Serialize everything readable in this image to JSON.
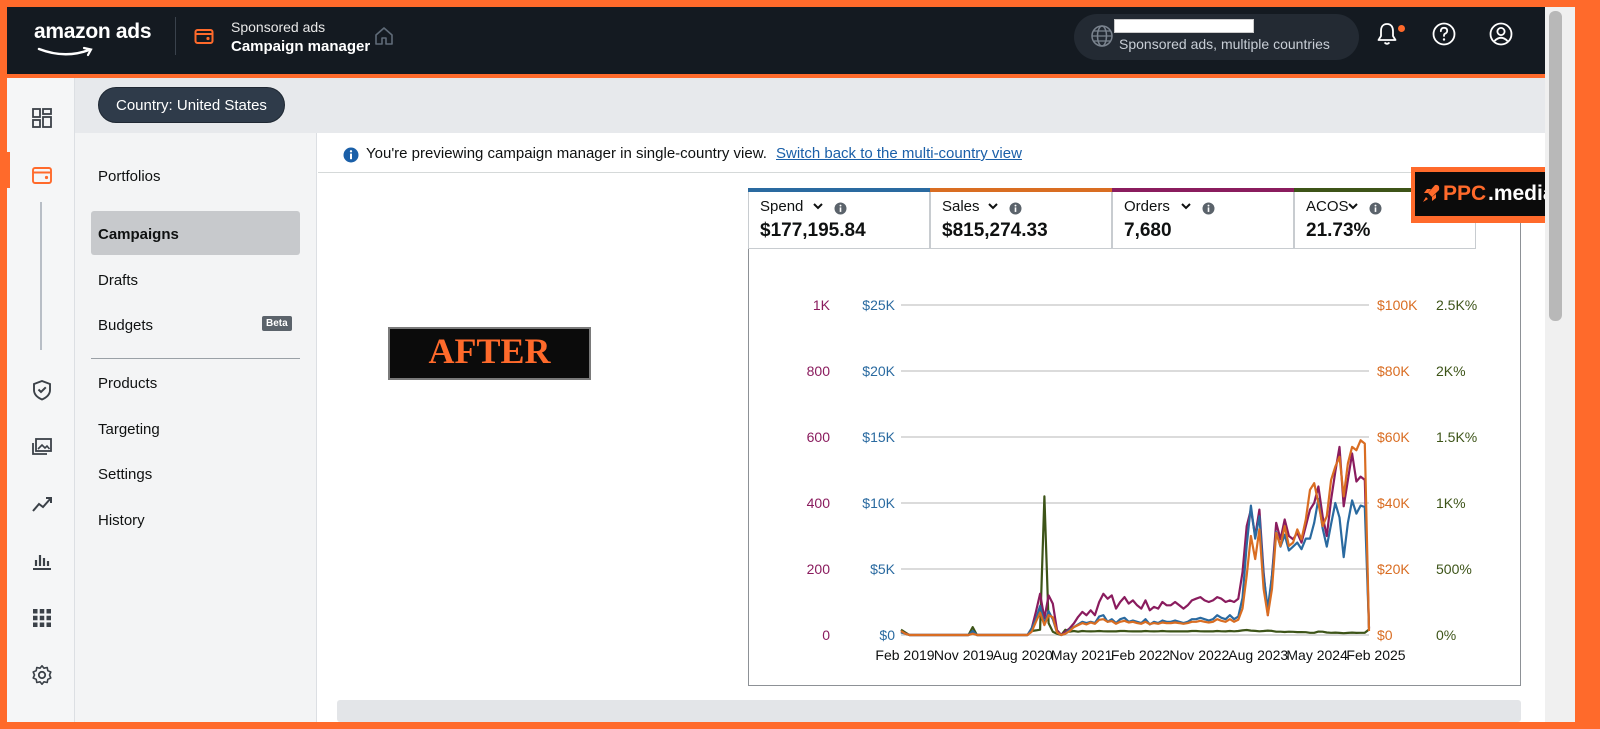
{
  "header": {
    "logo": "amazon ads",
    "product_line": "Sponsored ads",
    "app_title": "Campaign manager",
    "account_subtitle": "Sponsored ads, multiple countries"
  },
  "country_filter": {
    "label": "Country: United States"
  },
  "subnav": {
    "items": [
      "Portfolios",
      "Campaigns",
      "Drafts",
      "Budgets",
      "Products",
      "Targeting",
      "Settings",
      "History"
    ],
    "active": "Campaigns",
    "beta_badge": "Beta"
  },
  "info_bar": {
    "message": "You're previewing campaign manager in single-country view.",
    "link": "Switch back to the multi-country view"
  },
  "overlay": {
    "after_label": "AFTER",
    "brand_left": "PPC",
    "brand_right": ".media"
  },
  "metrics": [
    {
      "label": "Spend",
      "value": "$177,195.84",
      "color": "#2a6aa0"
    },
    {
      "label": "Sales",
      "value": "$815,274.33",
      "color": "#d96d22"
    },
    {
      "label": "Orders",
      "value": "7,680",
      "color": "#8a1c5e"
    },
    {
      "label": "ACOS",
      "value": "21.73%",
      "color": "#3d5418"
    }
  ],
  "colors": {
    "accent": "#ff6a2b",
    "topbar": "#141a21"
  },
  "chart_data": {
    "type": "line",
    "x_labels": [
      "Feb 2019",
      "Nov 2019",
      "Aug 2020",
      "May 2021",
      "Feb 2022",
      "Nov 2022",
      "Aug 2023",
      "May 2024",
      "Feb 2025"
    ],
    "axes": {
      "orders": {
        "ticks": [
          "1K",
          "800",
          "600",
          "400",
          "200",
          "0"
        ],
        "ylim": [
          0,
          1000
        ],
        "color": "#8a1c5e"
      },
      "spend": {
        "ticks": [
          "$25K",
          "$20K",
          "$15K",
          "$10K",
          "$5K",
          "$0"
        ],
        "ylim": [
          0,
          25000
        ],
        "color": "#2a6aa0"
      },
      "sales": {
        "ticks": [
          "$100K",
          "$80K",
          "$60K",
          "$40K",
          "$20K",
          "$0"
        ],
        "ylim": [
          0,
          100000
        ],
        "color": "#d96d22"
      },
      "acos": {
        "ticks": [
          "2.5K%",
          "2K%",
          "1.5K%",
          "1K%",
          "500%",
          "0%"
        ],
        "ylim": [
          0,
          2500
        ],
        "color": "#3d5418"
      }
    },
    "series": [
      {
        "name": "Spend",
        "axis": "spend",
        "color": "#2a6aa0",
        "values": [
          200,
          100,
          0,
          0,
          0,
          0,
          0,
          0,
          0,
          0,
          0,
          0,
          0,
          0,
          0,
          0,
          0,
          300,
          0,
          0,
          0,
          0,
          0,
          0,
          0,
          0,
          0,
          0,
          0,
          0,
          0,
          500,
          1200,
          2200,
          800,
          1800,
          1200,
          200,
          0,
          100,
          400,
          600,
          800,
          1000,
          900,
          1000,
          900,
          1400,
          1500,
          1000,
          1200,
          900,
          1200,
          1300,
          1000,
          1100,
          1000,
          900,
          1200,
          800,
          1000,
          900,
          1100,
          1000,
          1000,
          1100,
          1000,
          900,
          1000,
          1200,
          1200,
          1300,
          1200,
          1100,
          1200,
          1500,
          1300,
          1200,
          1500,
          1200,
          1400,
          2800,
          6800,
          9800,
          7300,
          9000,
          4500,
          2000,
          4500,
          7800,
          6700,
          7600,
          6400,
          6700,
          7000,
          6500,
          7300,
          7300,
          8500,
          10300,
          8100,
          6700,
          8400,
          10000,
          8900,
          5900,
          8500,
          10200,
          9200,
          9800,
          9700,
          500
        ]
      },
      {
        "name": "Sales",
        "axis": "sales",
        "color": "#d96d22",
        "values": [
          1200,
          400,
          0,
          0,
          0,
          0,
          0,
          0,
          0,
          0,
          0,
          0,
          0,
          0,
          0,
          0,
          0,
          400,
          0,
          0,
          0,
          0,
          0,
          0,
          0,
          0,
          0,
          0,
          0,
          0,
          0,
          1000,
          4000,
          6800,
          3000,
          6000,
          5400,
          800,
          0,
          400,
          1200,
          2400,
          3000,
          3600,
          3200,
          3800,
          3400,
          4600,
          4800,
          4000,
          4200,
          3400,
          4000,
          4300,
          3800,
          4000,
          3600,
          3400,
          4000,
          3300,
          3600,
          3400,
          3800,
          3600,
          3600,
          3800,
          3600,
          3400,
          3600,
          4000,
          4000,
          4300,
          4000,
          3800,
          4000,
          4800,
          4300,
          4000,
          4800,
          4000,
          4600,
          8000,
          18000,
          30000,
          23000,
          32000,
          14000,
          6000,
          14000,
          31000,
          27000,
          33000,
          27000,
          28000,
          32000,
          29000,
          35000,
          44000,
          46000,
          40000,
          33000,
          36000,
          47000,
          51000,
          54000,
          42000,
          52000,
          57000,
          56000,
          59000,
          58000,
          1200
        ]
      },
      {
        "name": "Orders",
        "axis": "orders",
        "color": "#8a1c5e",
        "values": [
          10,
          5,
          0,
          0,
          0,
          0,
          0,
          0,
          0,
          0,
          0,
          0,
          0,
          0,
          0,
          0,
          0,
          10,
          0,
          0,
          0,
          0,
          0,
          0,
          0,
          0,
          0,
          0,
          0,
          0,
          0,
          20,
          70,
          125,
          50,
          120,
          95,
          15,
          0,
          10,
          20,
          35,
          55,
          70,
          60,
          75,
          60,
          100,
          125,
          110,
          120,
          80,
          100,
          115,
          95,
          105,
          90,
          80,
          105,
          75,
          85,
          80,
          100,
          90,
          90,
          100,
          90,
          80,
          90,
          105,
          110,
          115,
          105,
          100,
          105,
          115,
          110,
          100,
          105,
          100,
          110,
          190,
          330,
          380,
          300,
          380,
          190,
          60,
          180,
          340,
          290,
          350,
          300,
          290,
          310,
          280,
          330,
          380,
          400,
          450,
          360,
          300,
          410,
          495,
          570,
          390,
          470,
          550,
          465,
          480,
          470,
          20
        ]
      },
      {
        "name": "ACOS",
        "axis": "acos",
        "color": "#3d5418",
        "values": [
          40,
          20,
          0,
          0,
          0,
          0,
          0,
          0,
          0,
          0,
          0,
          0,
          0,
          0,
          0,
          0,
          0,
          60,
          0,
          0,
          0,
          0,
          0,
          0,
          0,
          0,
          0,
          0,
          0,
          0,
          0,
          30,
          35,
          40,
          1050,
          90,
          25,
          10,
          0,
          40,
          25,
          30,
          25,
          30,
          28,
          27,
          28,
          30,
          28,
          27,
          28,
          27,
          30,
          30,
          28,
          27,
          28,
          27,
          30,
          28,
          27,
          28,
          30,
          28,
          27,
          28,
          27,
          28,
          27,
          30,
          30,
          28,
          27,
          28,
          27,
          30,
          28,
          27,
          30,
          28,
          30,
          35,
          38,
          33,
          31,
          28,
          30,
          33,
          31,
          25,
          25,
          23,
          25,
          24,
          22,
          22,
          21,
          17,
          17,
          26,
          25,
          19,
          17,
          18,
          16,
          14,
          16,
          18,
          16,
          17,
          17,
          42
        ]
      }
    ]
  }
}
